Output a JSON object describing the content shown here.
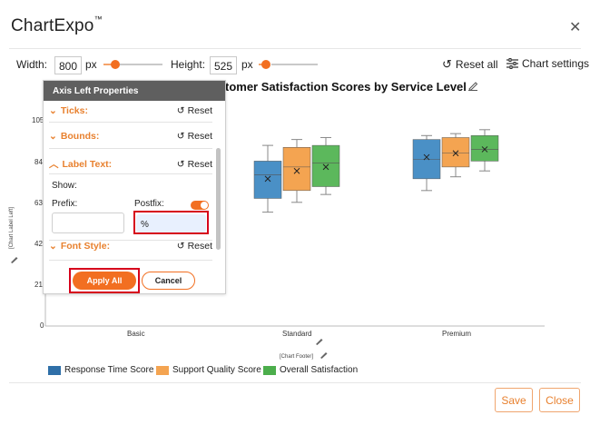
{
  "app": {
    "title": "ChartExpo",
    "trademark": "™"
  },
  "toolbar": {
    "width_label": "Width:",
    "width_value": "800",
    "height_label": "Height:",
    "height_value": "525",
    "unit": "px",
    "reset_all": "Reset all",
    "chart_settings": "Chart settings"
  },
  "chart": {
    "title": "tomer Satisfaction Scores by Service Level",
    "y_axis_label": "[Chart Label Left]",
    "footer": "[Chart Footer]",
    "y_ticks": [
      "105",
      "84",
      "63",
      "42",
      "21",
      "0"
    ],
    "legend": [
      {
        "name": "Response Time Score",
        "color": "#4a90c6"
      },
      {
        "name": "Support Quality Score",
        "color": "#f4a451"
      },
      {
        "name": "Overall Satisfaction",
        "color": "#5cb85c"
      }
    ]
  },
  "chart_data": {
    "type": "box",
    "categories": [
      "Basic",
      "Standard",
      "Premium"
    ],
    "series": [
      {
        "name": "Response Time Score",
        "color": "#4a90c6",
        "boxes": [
          null,
          {
            "min": 58,
            "q1": 65,
            "median": 77,
            "q3": 84,
            "max": 92,
            "mean": 75
          },
          {
            "min": 69,
            "q1": 75,
            "median": 85,
            "q3": 95,
            "max": 97,
            "mean": 86
          }
        ]
      },
      {
        "name": "Support Quality Score",
        "color": "#f4a451",
        "boxes": [
          null,
          {
            "min": 63,
            "q1": 69,
            "median": 81,
            "q3": 91,
            "max": 95,
            "mean": 79
          },
          {
            "min": 76,
            "q1": 81,
            "median": 88,
            "q3": 96,
            "max": 98,
            "mean": 88
          }
        ]
      },
      {
        "name": "Overall Satisfaction",
        "color": "#5cb85c",
        "boxes": [
          null,
          {
            "min": 67,
            "q1": 71,
            "median": 83,
            "q3": 92,
            "max": 96,
            "mean": 81
          },
          {
            "min": 79,
            "q1": 84,
            "median": 90,
            "q3": 97,
            "max": 100,
            "mean": 90
          }
        ]
      }
    ],
    "ylim": [
      0,
      105
    ]
  },
  "panel": {
    "title": "Axis Left Properties",
    "sections": {
      "ticks": "Ticks:",
      "bounds": "Bounds:",
      "label_text": "Label Text:",
      "font_style": "Font Style:"
    },
    "reset": "Reset",
    "show_label": "Show:",
    "show_on": true,
    "prefix_label": "Prefix:",
    "prefix_value": "",
    "postfix_label": "Postfix:",
    "postfix_value": "%",
    "apply_all": "Apply All",
    "cancel": "Cancel"
  },
  "footer": {
    "save": "Save",
    "close": "Close"
  }
}
